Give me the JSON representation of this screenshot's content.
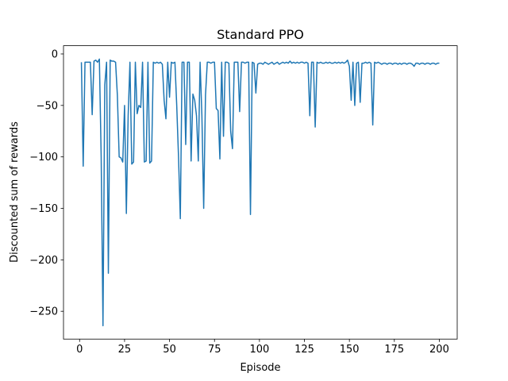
{
  "chart_data": {
    "type": "line",
    "title": "Standard PPO",
    "x_label": "Episode",
    "y_label": "Discounted sum of rewards",
    "color": "#1f77b4",
    "x": [
      1,
      2,
      3,
      4,
      5,
      6,
      7,
      8,
      9,
      10,
      11,
      12,
      13,
      14,
      15,
      16,
      17,
      18,
      19,
      20,
      21,
      22,
      23,
      24,
      25,
      26,
      27,
      28,
      29,
      30,
      31,
      32,
      33,
      34,
      35,
      36,
      37,
      38,
      39,
      40,
      41,
      42,
      43,
      44,
      45,
      46,
      47,
      48,
      49,
      50,
      51,
      52,
      53,
      54,
      55,
      56,
      57,
      58,
      59,
      60,
      61,
      62,
      63,
      64,
      65,
      66,
      67,
      68,
      69,
      70,
      71,
      72,
      73,
      74,
      75,
      76,
      77,
      78,
      79,
      80,
      81,
      82,
      83,
      84,
      85,
      86,
      87,
      88,
      89,
      90,
      91,
      92,
      93,
      94,
      95,
      96,
      97,
      98,
      99,
      100,
      101,
      102,
      103,
      104,
      105,
      106,
      107,
      108,
      109,
      110,
      111,
      112,
      113,
      114,
      115,
      116,
      117,
      118,
      119,
      120,
      121,
      122,
      123,
      124,
      125,
      126,
      127,
      128,
      129,
      130,
      131,
      132,
      133,
      134,
      135,
      136,
      137,
      138,
      139,
      140,
      141,
      142,
      143,
      144,
      145,
      146,
      147,
      148,
      149,
      150,
      151,
      152,
      153,
      154,
      155,
      156,
      157,
      158,
      159,
      160,
      161,
      162,
      163,
      164,
      165,
      166,
      167,
      168,
      169,
      170,
      171,
      172,
      173,
      174,
      175,
      176,
      177,
      178,
      179,
      180,
      181,
      182,
      183,
      184,
      185,
      186,
      187,
      188,
      189,
      190,
      191,
      192,
      193,
      194,
      195,
      196,
      197,
      198,
      199,
      200
    ],
    "values": [
      -8,
      -109,
      -8,
      -8,
      -8,
      -8,
      -59,
      -7,
      -6,
      -8,
      -5,
      -100,
      -264,
      -30,
      -8,
      -213,
      -6,
      -7,
      -7,
      -8,
      -40,
      -100,
      -101,
      -105,
      -50,
      -155,
      -60,
      -8,
      -107,
      -105,
      -8,
      -58,
      -50,
      -52,
      -8,
      -105,
      -104,
      -8,
      -106,
      -104,
      -8,
      -9,
      -8,
      -9,
      -8,
      -10,
      -45,
      -63,
      -8,
      -42,
      -8,
      -9,
      -8,
      -50,
      -100,
      -160,
      -8,
      -8,
      -88,
      -8,
      -8,
      -104,
      -39,
      -45,
      -60,
      -104,
      -8,
      -60,
      -150,
      -40,
      -8,
      -8,
      -9,
      -8,
      -8,
      -53,
      -55,
      -102,
      -8,
      -80,
      -8,
      -8,
      -9,
      -75,
      -92,
      -8,
      -8,
      -8,
      -56,
      -8,
      -8,
      -9,
      -8,
      -8,
      -156,
      -8,
      -9,
      -38,
      -10,
      -9,
      -9,
      -10,
      -8,
      -9,
      -10,
      -9,
      -8,
      -10,
      -9,
      -8,
      -10,
      -9,
      -8,
      -9,
      -8,
      -9,
      -7,
      -9,
      -8,
      -9,
      -8,
      -9,
      -8,
      -8,
      -9,
      -8,
      -9,
      -60,
      -8,
      -8,
      -71,
      -8,
      -9,
      -8,
      -9,
      -9,
      -8,
      -9,
      -8,
      -9,
      -9,
      -8,
      -9,
      -8,
      -9,
      -8,
      -9,
      -8,
      -6,
      -12,
      -45,
      -8,
      -50,
      -9,
      -8,
      -47,
      -9,
      -9,
      -8,
      -9,
      -8,
      -9,
      -69,
      -8,
      -9,
      -8,
      -9,
      -10,
      -9,
      -9,
      -10,
      -9,
      -9,
      -10,
      -9,
      -9,
      -10,
      -9,
      -10,
      -9,
      -9,
      -10,
      -9,
      -9,
      -10,
      -12,
      -9,
      -9,
      -10,
      -9,
      -9,
      -10,
      -9,
      -9,
      -10,
      -9,
      -9,
      -10,
      -9,
      -9
    ],
    "xlim": [
      -8.95,
      209.95
    ],
    "ylim": [
      -277,
      8
    ],
    "xticks": [
      0,
      25,
      50,
      75,
      100,
      125,
      150,
      175,
      200
    ],
    "yticks": [
      0,
      {
        "value": -50,
        "label": "−50"
      },
      {
        "value": -100,
        "label": "−100"
      },
      {
        "value": -150,
        "label": "−150"
      },
      {
        "value": -200,
        "label": "−200"
      },
      {
        "value": -250,
        "label": "−250"
      }
    ]
  }
}
